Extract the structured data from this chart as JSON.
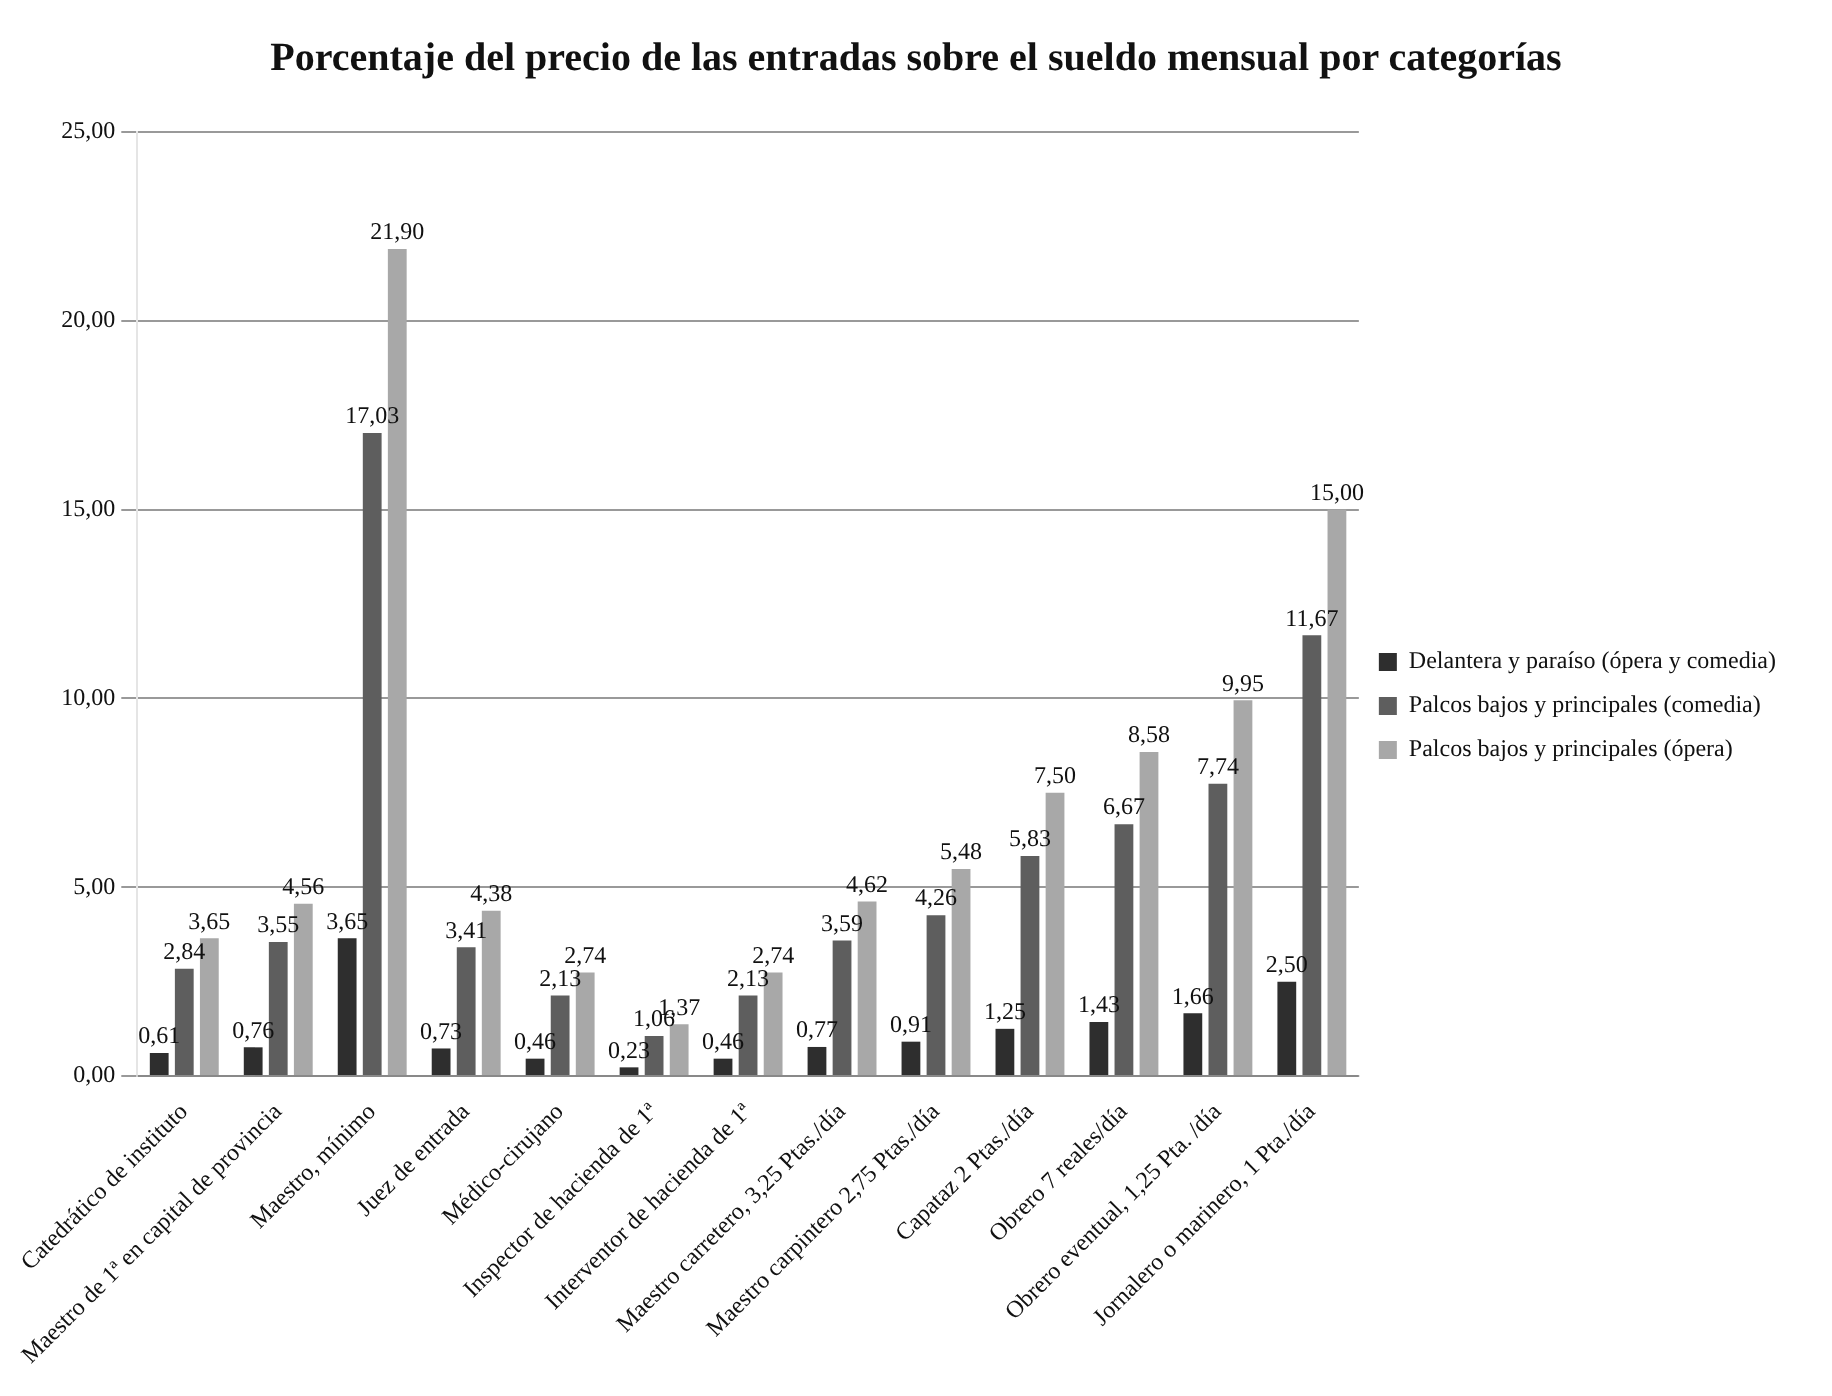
{
  "chart_data": {
    "type": "bar",
    "title": "Porcentaje del precio de las entradas sobre el sueldo mensual por categorías",
    "categories": [
      "Catedrático de instituto",
      "Maestro de 1ª en capital de provincia",
      "Maestro, mínimo",
      "Juez de entrada",
      "Médico-cirujano",
      "Inspector de hacienda de 1ª",
      "Interventor de hacienda de 1ª",
      "Maestro carretero, 3,25 Ptas./día",
      "Maestro carpintero 2,75 Ptas./día",
      "Capataz 2 Ptas./día",
      "Obrero 7 reales/día",
      "Obrero eventual, 1,25 Pta. /día",
      "Jornalero o marinero, 1 Pta./día"
    ],
    "series": [
      {
        "name": "Delantera y paraíso (ópera y comedia)",
        "color": "#2e2e2e",
        "values": [
          0.61,
          0.76,
          3.65,
          0.73,
          0.46,
          0.23,
          0.46,
          0.77,
          0.91,
          1.25,
          1.43,
          1.66,
          2.5
        ],
        "value_labels": [
          "0,61",
          "0,76",
          "3,65",
          "0,73",
          "0,46",
          "0,23",
          "0,46",
          "0,77",
          "0,91",
          "1,25",
          "1,43",
          "1,66",
          "2,50"
        ]
      },
      {
        "name": "Palcos bajos y principales (comedia)",
        "color": "#5e5e5e",
        "values": [
          2.84,
          3.55,
          17.03,
          3.41,
          2.13,
          1.06,
          2.13,
          3.59,
          4.26,
          5.83,
          6.67,
          7.74,
          11.67
        ],
        "value_labels": [
          "2,84",
          "3,55",
          "17,03",
          "3,41",
          "2,13",
          "1,06",
          "2,13",
          "3,59",
          "4,26",
          "5,83",
          "6,67",
          "7,74",
          "11,67"
        ]
      },
      {
        "name": "Palcos bajos y principales (ópera)",
        "color": "#a8a8a8",
        "values": [
          3.65,
          4.56,
          21.9,
          4.38,
          2.74,
          1.37,
          2.74,
          4.62,
          5.48,
          7.5,
          8.58,
          9.95,
          15.0
        ],
        "value_labels": [
          "3,65",
          "4,56",
          "21,90",
          "4,38",
          "2,74",
          "1,37",
          "2,74",
          "4,62",
          "5,48",
          "7,50",
          "8,58",
          "9,95",
          "15,00"
        ]
      }
    ],
    "ylim": [
      0,
      25
    ],
    "yticks": [
      {
        "value": 0,
        "label": "0,00"
      },
      {
        "value": 5,
        "label": "5,00"
      },
      {
        "value": 10,
        "label": "10,00"
      },
      {
        "value": 15,
        "label": "15,00"
      },
      {
        "value": 20,
        "label": "20,00"
      },
      {
        "value": 25,
        "label": "25,00"
      }
    ],
    "grid": "y",
    "legend": "right"
  }
}
